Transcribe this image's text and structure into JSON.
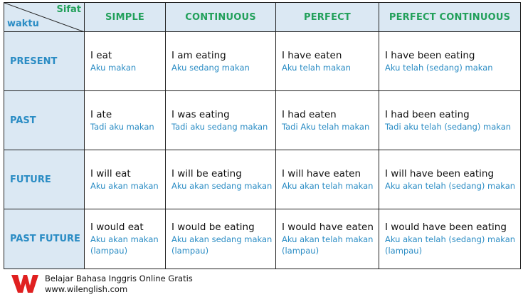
{
  "table": {
    "corner": {
      "top_right": "Sifat",
      "bottom_left": "waktu"
    },
    "columns": [
      "SIMPLE",
      "CONTINUOUS",
      "PERFECT",
      "PERFECT CONTINUOUS"
    ],
    "rows": [
      {
        "label": "PRESENT",
        "cells": [
          {
            "en": "I eat",
            "id": "Aku makan"
          },
          {
            "en": "I am eating",
            "id": "Aku sedang makan"
          },
          {
            "en": "I have eaten",
            "id": "Aku telah makan"
          },
          {
            "en": "I have been eating",
            "id": "Aku telah (sedang) makan"
          }
        ]
      },
      {
        "label": "PAST",
        "cells": [
          {
            "en": "I ate",
            "id": "Tadi aku makan"
          },
          {
            "en": "I was eating",
            "id": "Tadi aku sedang makan"
          },
          {
            "en": "I had eaten",
            "id": "Tadi Aku telah makan"
          },
          {
            "en": "I had been eating",
            "id": "Tadi aku telah (sedang) makan"
          }
        ]
      },
      {
        "label": "FUTURE",
        "cells": [
          {
            "en": "I will eat",
            "id": "Aku akan makan"
          },
          {
            "en": "I will be eating",
            "id": "Aku akan sedang makan"
          },
          {
            "en": "I will have eaten",
            "id": "Aku akan telah makan"
          },
          {
            "en": "I will have been eating",
            "id": "Aku akan telah (sedang) makan"
          }
        ]
      },
      {
        "label": "PAST FUTURE",
        "cells": [
          {
            "en": "I would eat",
            "id": "Aku akan makan (lampau)"
          },
          {
            "en": "I would be eating",
            "id": "Aku akan sedang makan (lampau)"
          },
          {
            "en": "I would have eaten",
            "id": "Aku akan telah makan (lampau)"
          },
          {
            "en": "I would have been eating",
            "id": "Aku akan telah (sedang) makan (lampau)"
          }
        ]
      }
    ]
  },
  "footer": {
    "line1": "Belajar Bahasa Inggris Online Gratis",
    "line2": "www.wilenglish.com",
    "logo_icon": "w-logo-icon"
  },
  "colors": {
    "header_fill": "#dbe8f3",
    "column_header_text": "#22a05a",
    "row_header_text": "#2a8cc4",
    "translation_text": "#2a8cc4",
    "logo_red": "#e02020"
  }
}
